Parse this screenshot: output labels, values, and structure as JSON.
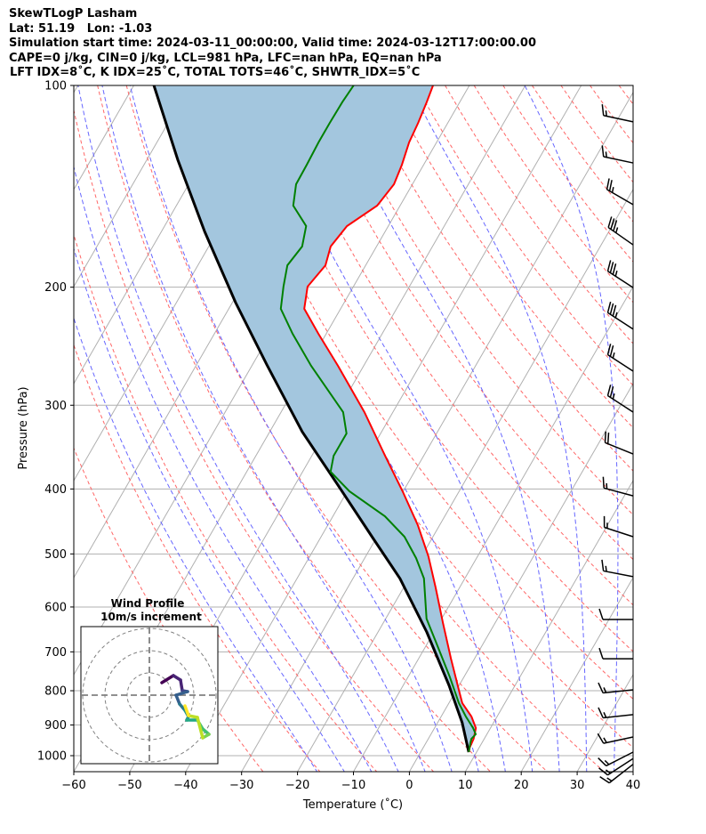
{
  "header": {
    "title": "SkewTLogP Lasham",
    "location": "Lat: 51.19   Lon: -1.03",
    "times": "Simulation start time: 2024-03-11_00:00:00, Valid time: 2024-03-12T17:00:00.00",
    "indices1": "CAPE=0 j/kg, CIN=0 j/kg, LCL=981 hPa, LFC=nan hPa, EQ=nan hPa",
    "indices2": "LFT IDX=8˚C, K IDX=25˚C, TOTAL TOTS=46˚C, SHWTR_IDX=5˚C"
  },
  "chart_data": {
    "type": "line",
    "title": "SkewTLogP Lasham",
    "xlabel": "Temperature (˚C)",
    "ylabel": "Pressure (hPa)",
    "xlim": [
      -60,
      40
    ],
    "ylim": [
      1056,
      100
    ],
    "xticks": [
      -60,
      -50,
      -40,
      -30,
      -20,
      -10,
      0,
      10,
      20,
      30,
      40
    ],
    "yticks": [
      100,
      200,
      300,
      400,
      500,
      600,
      700,
      800,
      900,
      1000
    ],
    "grid": true,
    "colors": {
      "temperature": "#ff0000",
      "dewpoint": "#008000",
      "parcel": "#000000",
      "cin_fill": "#a3c6de",
      "isotherm": "#b0b0b0",
      "dry_adiabat": "#ff6666",
      "moist_adiabat": "#6666ff"
    },
    "series": [
      {
        "name": "Temperature",
        "pressure": [
          100,
          105.9,
          113.7,
          121.6,
          131.3,
          140.4,
          151.1,
          162.1,
          173.9,
          185.5,
          199.6,
          215.4,
          234.7,
          262.0,
          307.2,
          356.9,
          403.3,
          452.9,
          504.1,
          561.1,
          634.2,
          716.8,
          797.5,
          835,
          874,
          909.6,
          943.6,
          972.8,
          987.9
        ],
        "temperature": [
          -66.5,
          -65.9,
          -65.3,
          -64.9,
          -63.9,
          -63.3,
          -64.1,
          -67.4,
          -68.2,
          -67.2,
          -68.2,
          -66.5,
          -61.4,
          -54.6,
          -45.1,
          -36.9,
          -30.1,
          -23.9,
          -18.8,
          -14.3,
          -9.3,
          -4.2,
          0.4,
          2.4,
          5.4,
          7.4,
          8.1,
          8.3,
          8.6
        ]
      },
      {
        "name": "Dewpoint",
        "pressure": [
          100,
          105.9,
          113.7,
          121.6,
          131.3,
          140.4,
          151.1,
          162.1,
          173.9,
          185.5,
          199.6,
          215.4,
          234.7,
          262.0,
          307.2,
          330.6,
          356.9,
          377.0,
          403.3,
          439.3,
          471.3,
          507.3,
          544.0,
          624.6,
          674.3,
          761.9,
          835,
          874,
          909.6,
          929,
          943.6,
          955,
          987.9
        ],
        "temperature": [
          -80.7,
          -81.0,
          -81.1,
          -81.1,
          -80.9,
          -80.8,
          -79.1,
          -74.7,
          -73.3,
          -74.0,
          -72.5,
          -70.7,
          -66.0,
          -59.4,
          -48.9,
          -46.1,
          -46.1,
          -45.0,
          -39.6,
          -30.7,
          -25.1,
          -20.8,
          -17.3,
          -12.7,
          -8.8,
          -2.6,
          1.8,
          4.4,
          6.9,
          8.0,
          7.7,
          7.9,
          8.6
        ]
      },
      {
        "name": "Parcel",
        "pressure": [
          100,
          129.3,
          165.1,
          210.9,
          261.2,
          328.6,
          394.8,
          474.2,
          544,
          653.8,
          785.5,
          893,
          987.9
        ],
        "temperature": [
          -116.4,
          -104.4,
          -92.3,
          -79.4,
          -67.4,
          -54.2,
          -42.3,
          -30.5,
          -21.6,
          -11.3,
          -1.8,
          4.4,
          8.6
        ]
      }
    ],
    "wind_barbs": [
      {
        "pressure": 113.3,
        "direction": 282,
        "speed": 15
      },
      {
        "pressure": 130.5,
        "direction": 282,
        "speed": 15
      },
      {
        "pressure": 150.6,
        "direction": 300,
        "speed": 25
      },
      {
        "pressure": 172.9,
        "direction": 305,
        "speed": 35
      },
      {
        "pressure": 200.3,
        "direction": 303,
        "speed": 35
      },
      {
        "pressure": 231.0,
        "direction": 303,
        "speed": 35
      },
      {
        "pressure": 266.9,
        "direction": 303,
        "speed": 25
      },
      {
        "pressure": 307.2,
        "direction": 303,
        "speed": 25
      },
      {
        "pressure": 354.7,
        "direction": 292,
        "speed": 20
      },
      {
        "pressure": 409.6,
        "direction": 285,
        "speed": 15
      },
      {
        "pressure": 471.3,
        "direction": 288,
        "speed": 15
      },
      {
        "pressure": 540.7,
        "direction": 281,
        "speed": 15
      },
      {
        "pressure": 626.3,
        "direction": 270,
        "speed": 10
      },
      {
        "pressure": 716.8,
        "direction": 270,
        "speed": 10
      },
      {
        "pressure": 797.5,
        "direction": 264,
        "speed": 15
      },
      {
        "pressure": 868.6,
        "direction": 264,
        "speed": 15
      },
      {
        "pressure": 937.9,
        "direction": 258,
        "speed": 15
      },
      {
        "pressure": 987.9,
        "direction": 243,
        "speed": 15
      },
      {
        "pressure": 1010,
        "direction": 237,
        "speed": 15
      },
      {
        "pressure": 1030,
        "direction": 232,
        "speed": 15
      }
    ],
    "hodograph": {
      "title": "Wind Profile",
      "subtitle": "10m/s increment",
      "ring_step_ms": 10,
      "rings": 3,
      "u": [
        5.6,
        10.8,
        14,
        14.8,
        17.2,
        12,
        13.6,
        16,
        17.6,
        16.8,
        21.6,
        24,
        26.8,
        24,
        21.6,
        17.6,
        16
      ],
      "v": [
        5.6,
        8.8,
        6.8,
        2,
        1.6,
        0,
        -4,
        -6.8,
        -9.6,
        -11.2,
        -11.2,
        -15.2,
        -17.6,
        -19.2,
        -10,
        -9.2,
        -4.8
      ]
    }
  }
}
